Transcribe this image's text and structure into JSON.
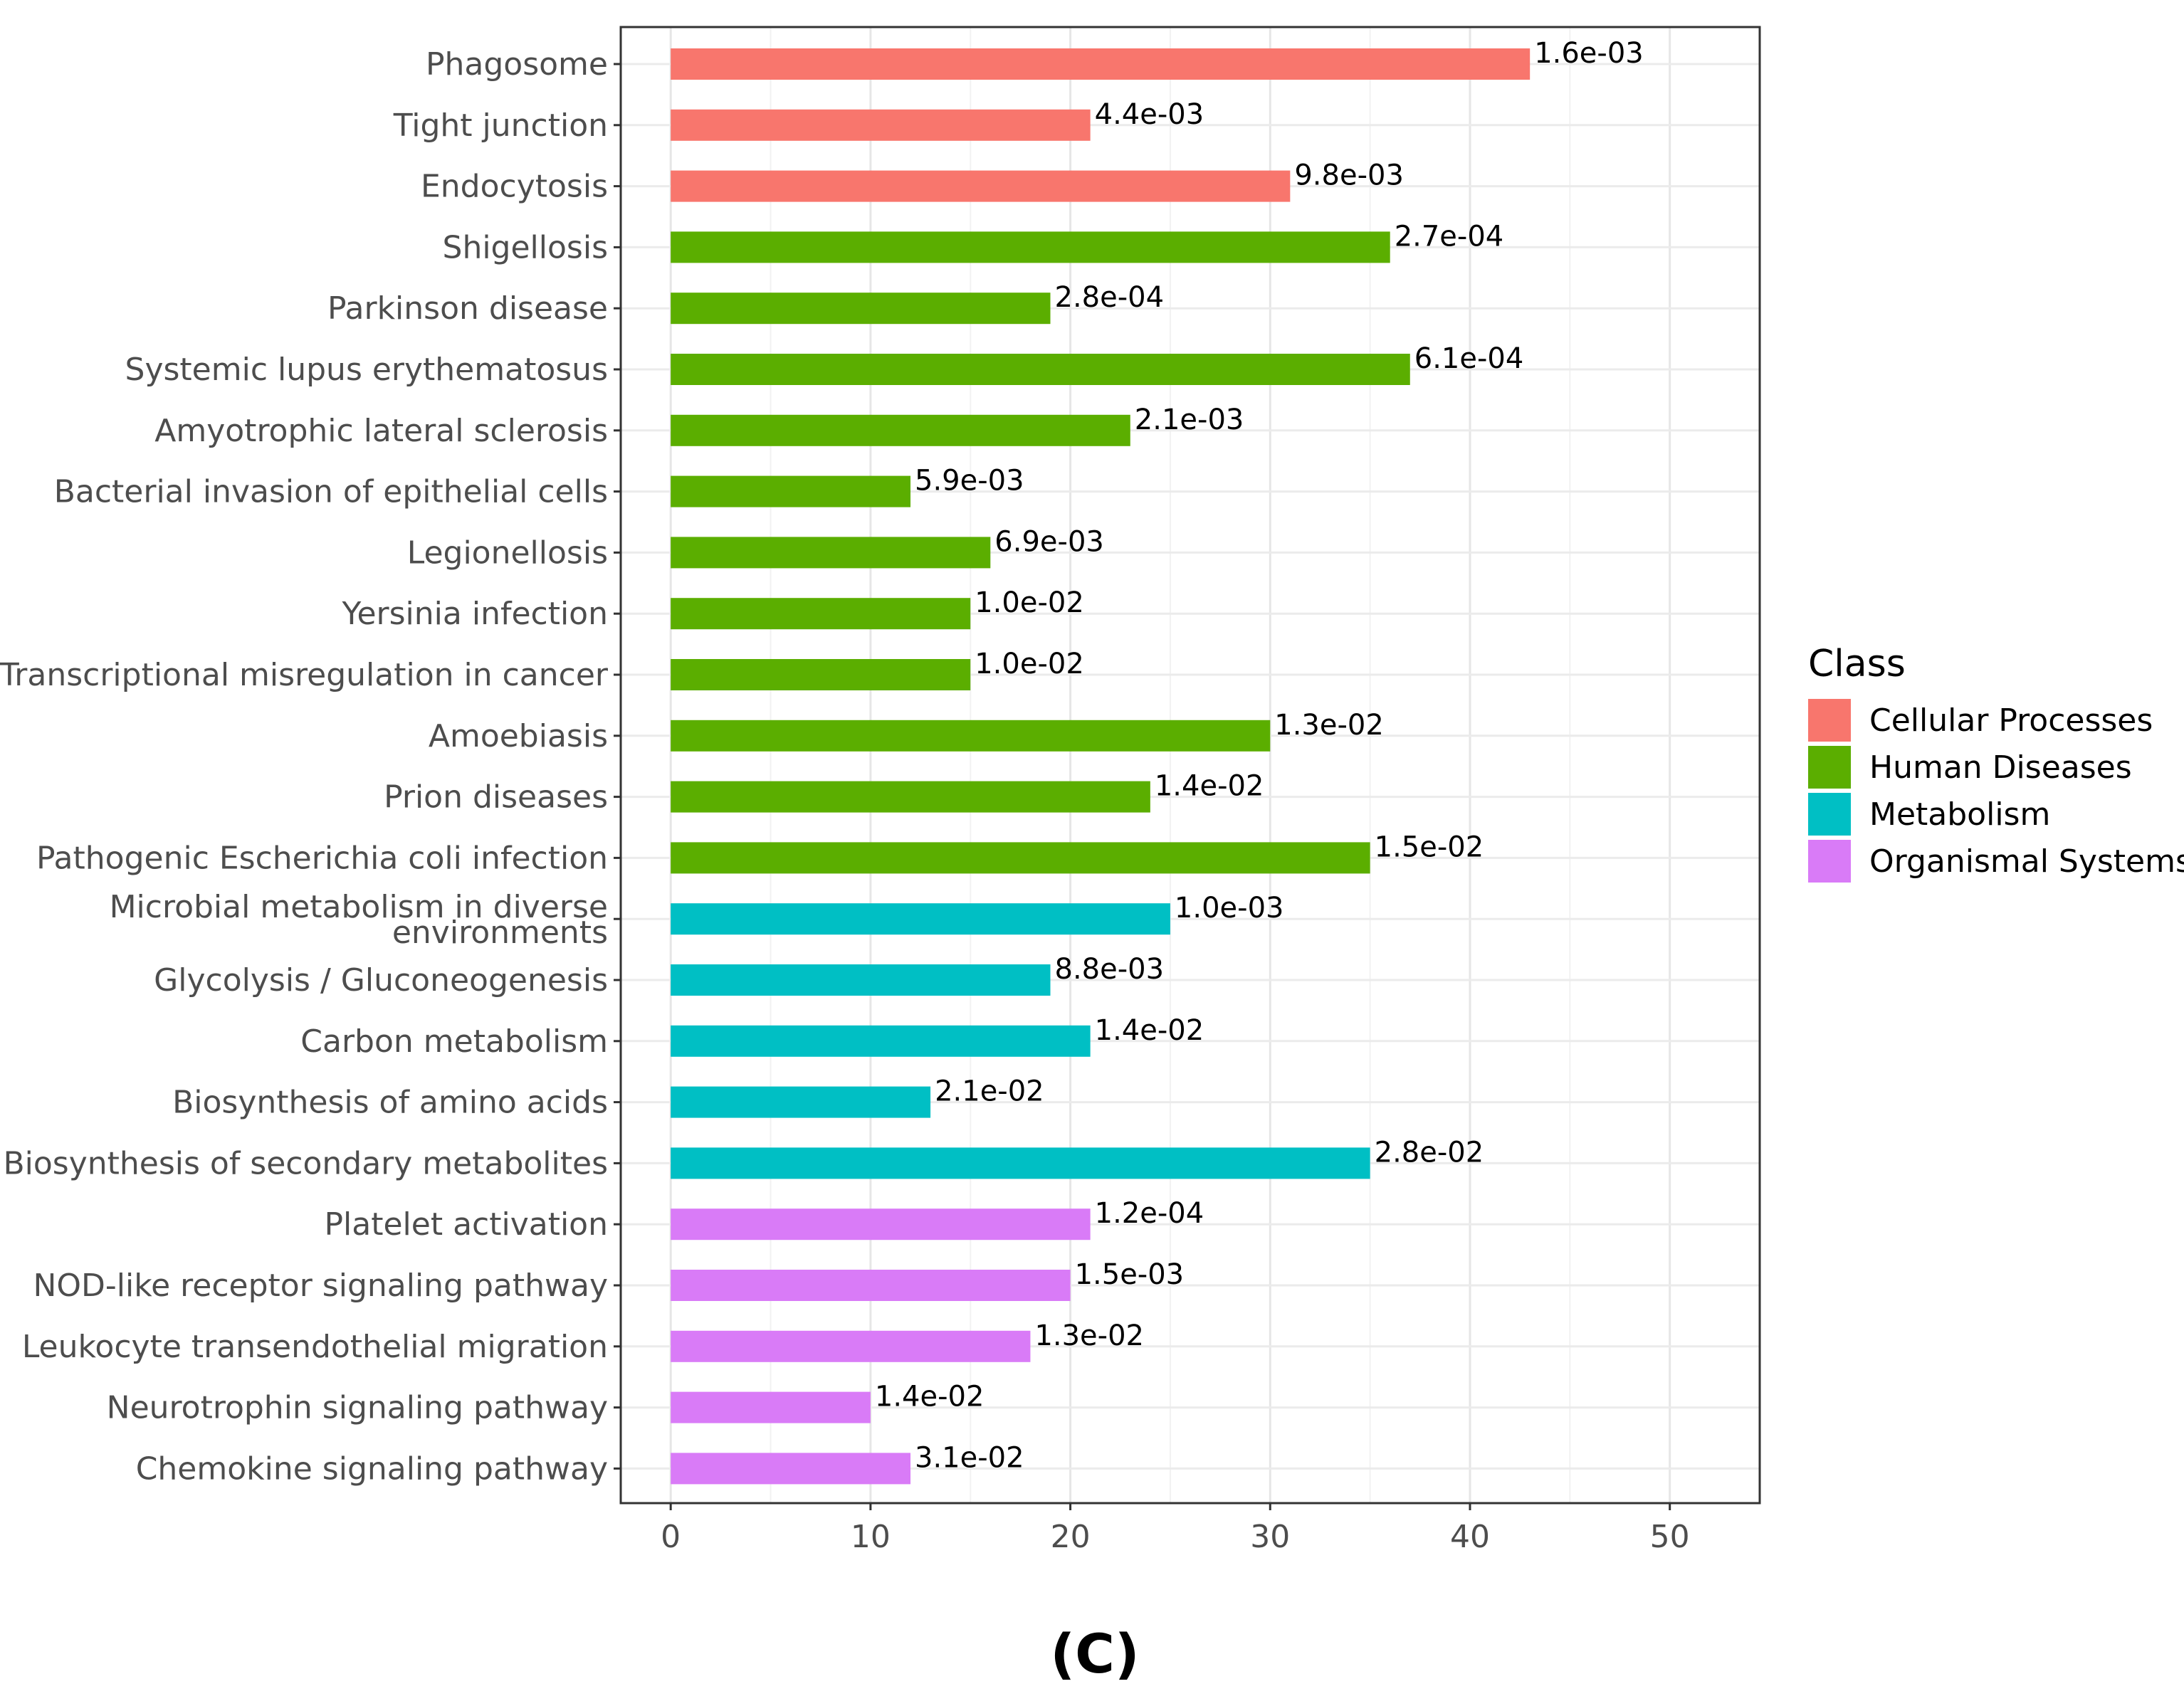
{
  "chart_data": {
    "type": "bar",
    "orientation": "horizontal",
    "xlabel": "",
    "ylabel": "",
    "xlim": [
      -2.5,
      54.5
    ],
    "xticks": [
      0,
      10,
      20,
      30,
      40,
      50
    ],
    "grid": true,
    "legend_position": "right",
    "legend": {
      "title": "Class",
      "entries": [
        {
          "name": "Cellular Processes",
          "color": "#F8766D"
        },
        {
          "name": "Human Diseases",
          "color": "#5BAE00"
        },
        {
          "name": "Metabolism",
          "color": "#00BFC4"
        },
        {
          "name": "Organismal Systems",
          "color": "#D97BF7"
        }
      ]
    },
    "bars": [
      {
        "label": "Phagosome",
        "value": 43,
        "pvalue": "1.6e-03",
        "class": "Cellular Processes"
      },
      {
        "label": "Tight junction",
        "value": 21,
        "pvalue": "4.4e-03",
        "class": "Cellular Processes"
      },
      {
        "label": "Endocytosis",
        "value": 31,
        "pvalue": "9.8e-03",
        "class": "Cellular Processes"
      },
      {
        "label": "Shigellosis",
        "value": 36,
        "pvalue": "2.7e-04",
        "class": "Human Diseases"
      },
      {
        "label": "Parkinson disease",
        "value": 19,
        "pvalue": "2.8e-04",
        "class": "Human Diseases"
      },
      {
        "label": "Systemic lupus erythematosus",
        "value": 37,
        "pvalue": "6.1e-04",
        "class": "Human Diseases"
      },
      {
        "label": "Amyotrophic lateral sclerosis",
        "value": 23,
        "pvalue": "2.1e-03",
        "class": "Human Diseases"
      },
      {
        "label": "Bacterial invasion of epithelial cells",
        "value": 12,
        "pvalue": "5.9e-03",
        "class": "Human Diseases"
      },
      {
        "label": "Legionellosis",
        "value": 16,
        "pvalue": "6.9e-03",
        "class": "Human Diseases"
      },
      {
        "label": "Yersinia infection",
        "value": 15,
        "pvalue": "1.0e-02",
        "class": "Human Diseases"
      },
      {
        "label": "Transcriptional misregulation in cancer",
        "value": 15,
        "pvalue": "1.0e-02",
        "class": "Human Diseases"
      },
      {
        "label": "Amoebiasis",
        "value": 30,
        "pvalue": "1.3e-02",
        "class": "Human Diseases"
      },
      {
        "label": "Prion diseases",
        "value": 24,
        "pvalue": "1.4e-02",
        "class": "Human Diseases"
      },
      {
        "label": "Pathogenic Escherichia coli infection",
        "value": 35,
        "pvalue": "1.5e-02",
        "class": "Human Diseases"
      },
      {
        "label": "Microbial metabolism in diverse environments",
        "value": 25,
        "pvalue": "1.0e-03",
        "class": "Metabolism"
      },
      {
        "label": "Glycolysis / Gluconeogenesis",
        "value": 19,
        "pvalue": "8.8e-03",
        "class": "Metabolism"
      },
      {
        "label": "Carbon metabolism",
        "value": 21,
        "pvalue": "1.4e-02",
        "class": "Metabolism"
      },
      {
        "label": "Biosynthesis of amino acids",
        "value": 13,
        "pvalue": "2.1e-02",
        "class": "Metabolism"
      },
      {
        "label": "Biosynthesis of secondary metabolites",
        "value": 35,
        "pvalue": "2.8e-02",
        "class": "Metabolism"
      },
      {
        "label": "Platelet activation",
        "value": 21,
        "pvalue": "1.2e-04",
        "class": "Organismal Systems"
      },
      {
        "label": "NOD-like receptor signaling pathway",
        "value": 20,
        "pvalue": "1.5e-03",
        "class": "Organismal Systems"
      },
      {
        "label": "Leukocyte transendothelial migration",
        "value": 18,
        "pvalue": "1.3e-02",
        "class": "Organismal Systems"
      },
      {
        "label": "Neurotrophin signaling pathway",
        "value": 10,
        "pvalue": "1.4e-02",
        "class": "Organismal Systems"
      },
      {
        "label": "Chemokine signaling pathway",
        "value": 12,
        "pvalue": "3.1e-02",
        "class": "Organismal Systems"
      }
    ]
  },
  "caption": "(C)"
}
